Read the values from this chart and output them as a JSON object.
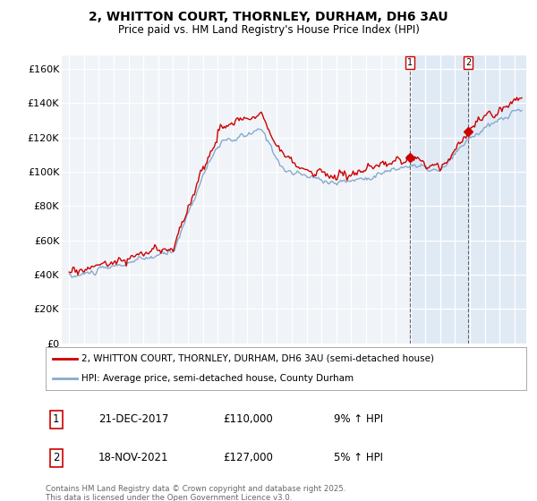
{
  "title": "2, WHITTON COURT, THORNLEY, DURHAM, DH6 3AU",
  "subtitle": "Price paid vs. HM Land Registry's House Price Index (HPI)",
  "legend_line1": "2, WHITTON COURT, THORNLEY, DURHAM, DH6 3AU (semi-detached house)",
  "legend_line2": "HPI: Average price, semi-detached house, County Durham",
  "annotation1_label": "1",
  "annotation1_date": "21-DEC-2017",
  "annotation1_price": "£110,000",
  "annotation1_hpi": "9% ↑ HPI",
  "annotation2_label": "2",
  "annotation2_date": "18-NOV-2021",
  "annotation2_price": "£127,000",
  "annotation2_hpi": "5% ↑ HPI",
  "footer": "Contains HM Land Registry data © Crown copyright and database right 2025.\nThis data is licensed under the Open Government Licence v3.0.",
  "red_color": "#cc0000",
  "blue_color": "#88aacc",
  "shade_color": "#dde8f5",
  "marker1_x": 2017.97,
  "marker2_x": 2021.88,
  "ylim_min": 0,
  "ylim_max": 168000,
  "xlim_min": 1994.5,
  "xlim_max": 2025.8,
  "yticks": [
    0,
    20000,
    40000,
    60000,
    80000,
    100000,
    120000,
    140000,
    160000
  ],
  "ytick_labels": [
    "£0",
    "£20K",
    "£40K",
    "£60K",
    "£80K",
    "£100K",
    "£120K",
    "£140K",
    "£160K"
  ],
  "xticks": [
    1995,
    1996,
    1997,
    1998,
    1999,
    2000,
    2001,
    2002,
    2003,
    2004,
    2005,
    2006,
    2007,
    2008,
    2009,
    2010,
    2011,
    2012,
    2013,
    2014,
    2015,
    2016,
    2017,
    2018,
    2019,
    2020,
    2021,
    2022,
    2023,
    2024,
    2025
  ],
  "bg_color": "#ffffff",
  "plot_bg": "#f0f4f8"
}
